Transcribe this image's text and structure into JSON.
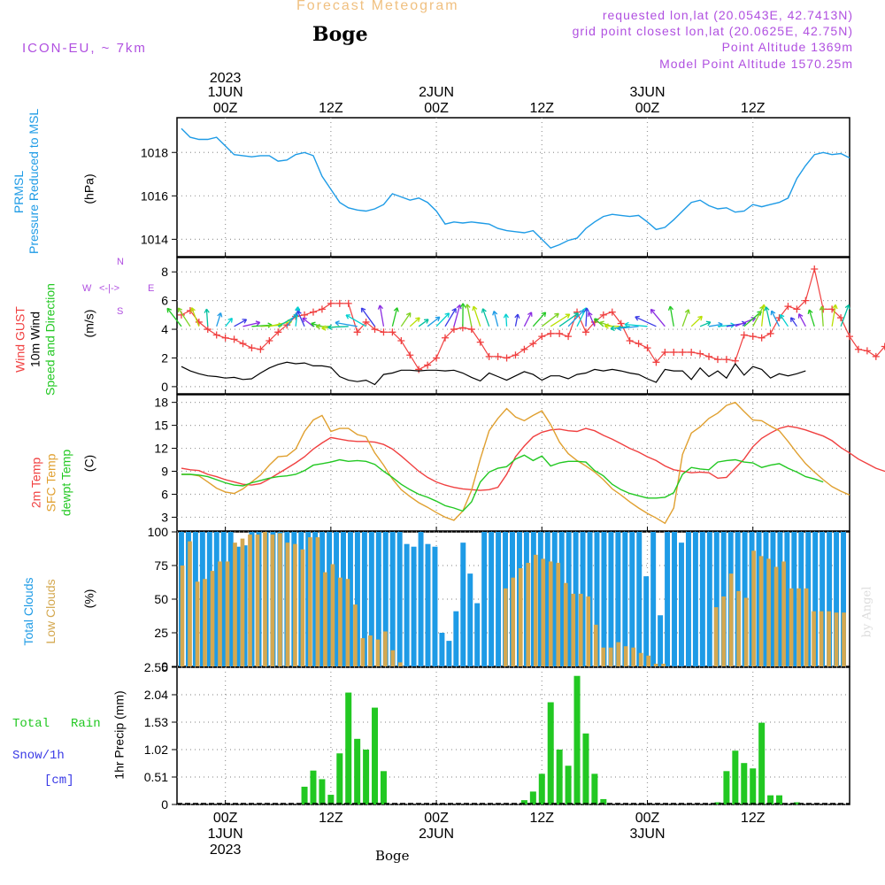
{
  "header": {
    "title": "Forecast Meteogram",
    "location": "Boge",
    "model": "ICON-EU, ~ 7km",
    "info": [
      "requested lon,lat (20.0543E, 42.7413N)",
      "grid point closest lon,lat (20.0625E, 42.75N)",
      "Point Altitude 1369m",
      "Model Point Altitude 1570.25m"
    ],
    "footer_location": "Boge",
    "watermark": "by Angel"
  },
  "colors": {
    "title": "#f0c080",
    "info": "#b050e0",
    "prmsl": "#1e9be6",
    "gust": "#f04040",
    "wind": "#000000",
    "dir": "#22c822",
    "sfc": "#e0a030",
    "dewpt": "#22c822",
    "total_clouds": "#1e9be6",
    "low_clouds": "#d4a850",
    "rain": "#22c822",
    "snow": "#3a3ae6",
    "grid": "#999999"
  },
  "time_axis": {
    "top_year": "2023",
    "major_ticks": [
      {
        "hour": 0,
        "top": [
          "1JUN",
          "00Z"
        ],
        "bottom": [
          "00Z",
          "1JUN",
          "2023"
        ]
      },
      {
        "hour": 12,
        "top": [
          "12Z"
        ],
        "bottom": [
          "12Z"
        ]
      },
      {
        "hour": 24,
        "top": [
          "2JUN",
          "00Z"
        ],
        "bottom": [
          "00Z",
          "2JUN"
        ]
      },
      {
        "hour": 36,
        "top": [
          "12Z"
        ],
        "bottom": [
          "12Z"
        ]
      },
      {
        "hour": 48,
        "top": [
          "3JUN",
          "00Z"
        ],
        "bottom": [
          "00Z",
          "3JUN"
        ]
      },
      {
        "hour": 60,
        "top": [
          "12Z"
        ],
        "bottom": [
          "12Z"
        ]
      }
    ],
    "range_hours": [
      -5.5,
      71
    ]
  },
  "panels": {
    "pressure": {
      "labels": [
        "PRMSL",
        "Pressure Reduced to MSL"
      ],
      "unit": "(hPa)"
    },
    "wind": {
      "labels": [
        "Wind GUST",
        "10m Wind",
        "Speed and Direction"
      ],
      "unit": "(m/s)",
      "compass": {
        "n": "N",
        "s": "S",
        "w": "W",
        "e": "E",
        "arrows": "<-|->"
      }
    },
    "temp": {
      "labels": [
        "2m Temp",
        "SFC Temp",
        "dewpt Temp"
      ],
      "unit": "(C)"
    },
    "clouds": {
      "labels": [
        "Total Clouds",
        "Low Clouds"
      ],
      "unit": "(%)"
    },
    "precip": {
      "labels": [
        "Total",
        "Rain",
        "Snow/1h",
        "[cm]"
      ],
      "unit": "1hr Precip (mm)"
    }
  },
  "chart_data": [
    {
      "type": "line",
      "title": "PRMSL Pressure Reduced to MSL",
      "ylabel": "(hPa)",
      "ylim": [
        1013.2,
        1019.6
      ],
      "yticks": [
        1014,
        1016,
        1018
      ],
      "x_hours_start": -5,
      "x_step_hours": 1,
      "series": [
        {
          "name": "PRMSL",
          "values": [
            1019.1,
            1018.7,
            1018.6,
            1018.6,
            1018.7,
            1018.3,
            1017.9,
            1017.85,
            1017.8,
            1017.85,
            1017.85,
            1017.6,
            1017.65,
            1017.9,
            1018.0,
            1017.85,
            1016.9,
            1016.3,
            1015.7,
            1015.45,
            1015.35,
            1015.3,
            1015.4,
            1015.6,
            1016.1,
            1015.95,
            1015.8,
            1015.9,
            1015.7,
            1015.3,
            1014.7,
            1014.8,
            1014.75,
            1014.8,
            1014.75,
            1014.7,
            1014.5,
            1014.4,
            1014.35,
            1014.3,
            1014.4,
            1014.0,
            1013.6,
            1013.75,
            1013.95,
            1014.05,
            1014.5,
            1014.8,
            1015.05,
            1015.15,
            1015.1,
            1015.05,
            1015.1,
            1014.8,
            1014.45,
            1014.55,
            1014.9,
            1015.3,
            1015.7,
            1015.8,
            1015.55,
            1015.4,
            1015.45,
            1015.25,
            1015.3,
            1015.6,
            1015.5,
            1015.6,
            1015.7,
            1015.9,
            1016.8,
            1017.4,
            1017.9,
            1018.0,
            1017.9,
            1017.95,
            1017.75
          ]
        }
      ]
    },
    {
      "type": "line",
      "title": "Wind GUST / 10m Wind Speed and Direction",
      "ylabel": "(m/s)",
      "ylim": [
        -0.5,
        9.0
      ],
      "yticks": [
        0,
        2,
        4,
        6,
        8
      ],
      "x_hours_start": -5,
      "x_step_hours": 1,
      "series": [
        {
          "name": "Wind GUST",
          "values": [
            5.0,
            5.3,
            4.5,
            4.0,
            3.6,
            3.4,
            3.3,
            3.0,
            2.7,
            2.6,
            3.2,
            3.8,
            4.3,
            4.9,
            5.0,
            5.2,
            5.4,
            5.8,
            5.8,
            5.8,
            3.8,
            4.5,
            4.0,
            3.8,
            3.8,
            3.2,
            2.2,
            1.2,
            1.5,
            2.0,
            3.4,
            4.0,
            4.1,
            4.0,
            3.1,
            2.1,
            2.1,
            2.0,
            2.2,
            2.6,
            3.0,
            3.5,
            3.7,
            3.7,
            3.5,
            5.2,
            3.8,
            4.5,
            5.0,
            5.2,
            4.4,
            3.2,
            3.0,
            2.7,
            1.7,
            2.4,
            2.4,
            2.4,
            2.4,
            2.3,
            2.1,
            1.9,
            1.9,
            1.8,
            3.6,
            3.5,
            3.4,
            3.7,
            4.8,
            5.6,
            5.4,
            6.0,
            8.2,
            5.4,
            5.4,
            4.8,
            3.5,
            2.6,
            2.5,
            2.1,
            2.8
          ]
        },
        {
          "name": "10m Wind",
          "values": [
            1.4,
            1.1,
            0.9,
            0.75,
            0.7,
            0.6,
            0.65,
            0.5,
            0.55,
            0.95,
            1.3,
            1.55,
            1.7,
            1.6,
            1.65,
            1.45,
            1.45,
            1.35,
            0.7,
            0.45,
            0.35,
            0.45,
            0.15,
            0.85,
            0.95,
            1.15,
            1.15,
            1.1,
            1.15,
            1.15,
            1.1,
            1.15,
            0.95,
            0.65,
            0.4,
            0.95,
            0.7,
            0.45,
            0.75,
            1.05,
            0.85,
            0.45,
            0.75,
            0.75,
            0.55,
            0.85,
            0.95,
            1.2,
            1.1,
            1.2,
            1.1,
            0.95,
            0.85,
            0.55,
            0.3,
            1.2,
            1.1,
            1.1,
            0.5,
            1.3,
            0.7,
            1.1,
            0.6,
            1.6,
            0.8,
            1.4,
            1.2,
            0.6,
            0.9,
            0.75,
            0.9,
            1.1
          ]
        }
      ]
    },
    {
      "type": "line",
      "title": "Temperature",
      "ylabel": "(C)",
      "ylim": [
        1.2,
        19.0
      ],
      "yticks": [
        3,
        6,
        9,
        12,
        15,
        18
      ],
      "x_hours_start": -5,
      "x_step_hours": 1,
      "series": [
        {
          "name": "2m Temp",
          "values": [
            9.4,
            9.2,
            9.1,
            8.6,
            8.3,
            7.9,
            7.6,
            7.3,
            7.2,
            7.4,
            8.0,
            8.7,
            9.4,
            10.1,
            10.9,
            11.9,
            12.7,
            13.4,
            13.2,
            13.0,
            12.9,
            12.9,
            12.8,
            12.5,
            11.9,
            11.0,
            10.0,
            9.0,
            8.2,
            7.6,
            7.2,
            6.9,
            6.7,
            6.6,
            6.5,
            6.6,
            6.9,
            8.6,
            10.9,
            12.3,
            13.5,
            14.1,
            14.4,
            14.5,
            14.3,
            14.2,
            14.6,
            14.3,
            13.7,
            13.2,
            12.6,
            12.0,
            11.5,
            10.9,
            10.4,
            9.7,
            9.2,
            9.0,
            8.8,
            8.9,
            8.8,
            8.1,
            8.2,
            9.4,
            10.6,
            12.2,
            13.3,
            14.0,
            14.6,
            14.9,
            14.7,
            14.4,
            14.0,
            13.6,
            13.0,
            12.1,
            11.4,
            10.6,
            10.0,
            9.4,
            9.0,
            8.8
          ]
        },
        {
          "name": "SFC Temp",
          "values": [
            8.6,
            8.6,
            8.4,
            7.6,
            6.8,
            6.3,
            6.1,
            6.7,
            7.6,
            8.5,
            9.8,
            10.9,
            11.0,
            11.9,
            14.2,
            15.7,
            16.3,
            14.2,
            14.6,
            14.6,
            13.8,
            13.5,
            11.4,
            9.8,
            8.0,
            6.6,
            5.7,
            4.9,
            4.3,
            3.6,
            3.0,
            2.6,
            3.8,
            6.5,
            10.6,
            14.3,
            15.9,
            17.2,
            16.1,
            15.6,
            16.3,
            16.9,
            15.1,
            12.8,
            11.3,
            10.4,
            9.7,
            8.9,
            7.9,
            6.7,
            5.9,
            5.0,
            4.2,
            3.5,
            2.9,
            2.2,
            4.2,
            11.2,
            14.0,
            14.8,
            15.9,
            16.6,
            17.6,
            18.0,
            16.8,
            15.7,
            15.6,
            14.9,
            14.3,
            12.9,
            11.4,
            10.0,
            8.9,
            7.9,
            7.0,
            6.4,
            5.9
          ]
        },
        {
          "name": "dewpt Temp",
          "values": [
            8.6,
            8.6,
            8.5,
            8.3,
            7.9,
            7.5,
            7.2,
            7.1,
            7.5,
            7.8,
            8.1,
            8.3,
            8.4,
            8.6,
            9.1,
            9.8,
            10.0,
            10.2,
            10.5,
            10.3,
            10.4,
            10.3,
            9.9,
            9.0,
            8.2,
            7.3,
            6.6,
            6.0,
            5.6,
            5.1,
            4.5,
            4.2,
            3.8,
            5.0,
            7.6,
            8.9,
            9.4,
            9.6,
            10.6,
            11.1,
            10.4,
            11.0,
            9.7,
            10.1,
            10.3,
            10.3,
            10.2,
            9.1,
            8.4,
            7.3,
            6.6,
            6.1,
            5.8,
            5.5,
            5.5,
            5.6,
            6.2,
            8.6,
            9.5,
            9.3,
            9.2,
            10.2,
            10.4,
            10.5,
            10.2,
            10.1,
            9.5,
            9.8,
            10.0,
            9.4,
            8.9,
            8.3,
            8.0,
            7.6
          ]
        }
      ]
    },
    {
      "type": "bar",
      "title": "Clouds",
      "ylabel": "(%)",
      "ylim": [
        0,
        100
      ],
      "yticks": [
        0,
        25,
        50,
        75,
        100
      ],
      "x_hours_start": -5,
      "x_step_hours": 1,
      "series": [
        {
          "name": "Total Clouds",
          "values": [
            100,
            100,
            100,
            100,
            100,
            100,
            100,
            100,
            89,
            90,
            100,
            100,
            100,
            100,
            100,
            100,
            100,
            100,
            100,
            100,
            100,
            100,
            100,
            100,
            100,
            100,
            100,
            100,
            100,
            100,
            100,
            100,
            91,
            89,
            100,
            91,
            89,
            25,
            19,
            41,
            92,
            69,
            47,
            100,
            100,
            100,
            100,
            100,
            100,
            100,
            100,
            100,
            100,
            100,
            100,
            100,
            100,
            100,
            100,
            100,
            100,
            100,
            100,
            100,
            100,
            100,
            67,
            100,
            38,
            100,
            100,
            92,
            100,
            100,
            100,
            100,
            100,
            100,
            100,
            100,
            100,
            100,
            100,
            100,
            100,
            100,
            100,
            100,
            100,
            100,
            100,
            100,
            100,
            100,
            100
          ]
        },
        {
          "name": "Low Clouds",
          "values": [
            75,
            93,
            63,
            65,
            71,
            78,
            78,
            92,
            95,
            98,
            98,
            100,
            98,
            99,
            92,
            91,
            87,
            96,
            96,
            70,
            76,
            66,
            65,
            46,
            21,
            23,
            20,
            26,
            12,
            3,
            0,
            0,
            0,
            0,
            0,
            0,
            0,
            0,
            0,
            0,
            0,
            0,
            0,
            58,
            66,
            73,
            77,
            83,
            80,
            78,
            77,
            62,
            54,
            54,
            52,
            31,
            14,
            14,
            18,
            15,
            14,
            10,
            8,
            2,
            2,
            0,
            0,
            0,
            0,
            0,
            0,
            44,
            52,
            69,
            56,
            51,
            86,
            82,
            80,
            74,
            78,
            58,
            58,
            58,
            41,
            41,
            41,
            40,
            40
          ]
        }
      ]
    },
    {
      "type": "bar",
      "title": "1hr Precip (mm)",
      "ylabel": "1hr Precip (mm)",
      "ylim": [
        0,
        2.55
      ],
      "yticks": [
        0,
        0.51,
        1.02,
        1.53,
        2.04,
        2.55
      ],
      "x_hours_start": -5,
      "x_step_hours": 1,
      "series": [
        {
          "name": "Total Rain",
          "values": [
            0,
            0,
            0,
            0,
            0,
            0,
            0,
            0,
            0,
            0,
            0,
            0,
            0,
            0,
            0.33,
            0.63,
            0.47,
            0.18,
            0.95,
            2.08,
            1.22,
            1.02,
            1.8,
            0.62,
            0,
            0,
            0,
            0,
            0,
            0,
            0,
            0,
            0,
            0,
            0,
            0,
            0,
            0,
            0,
            0.08,
            0.24,
            0.57,
            1.9,
            1.02,
            0.72,
            2.39,
            1.32,
            0.57,
            0.1,
            0,
            0,
            0,
            0,
            0,
            0,
            0,
            0,
            0,
            0,
            0,
            0,
            0.04,
            0.62,
            1.0,
            0.77,
            0.67,
            1.52,
            0.17,
            0.17,
            0,
            0.04,
            0,
            0,
            0,
            0,
            0
          ]
        },
        {
          "name": "Snow/1h",
          "values": [
            0
          ]
        }
      ]
    }
  ]
}
